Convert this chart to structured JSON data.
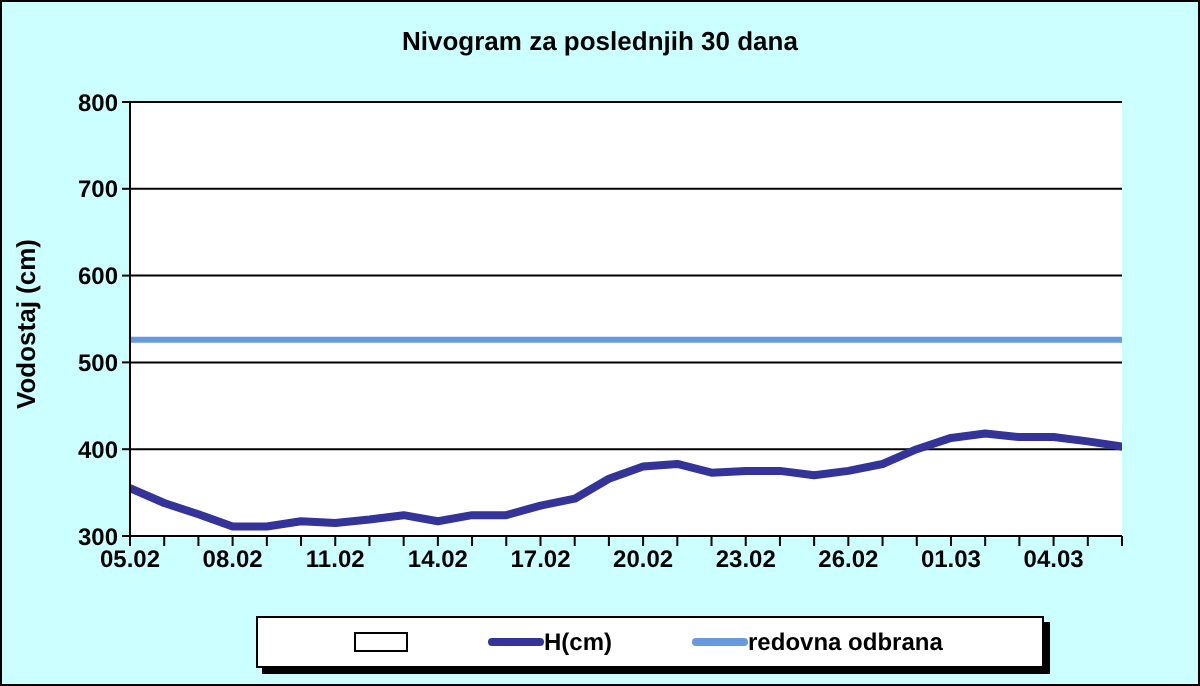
{
  "chart_data": {
    "type": "line",
    "title": "Nivogram za poslednjih 30 dana",
    "ylabel": "Vodostaj (cm)",
    "categories": [
      "05.02",
      null,
      null,
      "08.02",
      null,
      null,
      "11.02",
      null,
      null,
      "14.02",
      null,
      null,
      "17.02",
      null,
      null,
      "20.02",
      null,
      null,
      "23.02",
      null,
      null,
      "26.02",
      null,
      null,
      "01.03",
      null,
      null,
      "04.03",
      null,
      null
    ],
    "series": [
      {
        "name": "H(cm)",
        "color": "#333399",
        "values": [
          355,
          338,
          325,
          311,
          311,
          317,
          315,
          319,
          324,
          317,
          324,
          324,
          335,
          343,
          366,
          380,
          383,
          373,
          375,
          375,
          370,
          375,
          383,
          400,
          413,
          418,
          414,
          414,
          409,
          403
        ]
      }
    ],
    "ref_lines": [
      {
        "axis": "y",
        "value": 526,
        "label": "redovna odbrana",
        "color": "#6699dd"
      }
    ],
    "ylim": [
      300,
      800
    ],
    "yticks": [
      300,
      400,
      500,
      600,
      700,
      800
    ],
    "grid": "y",
    "legend": "bottom",
    "marker": "none",
    "line_style": "solid"
  }
}
